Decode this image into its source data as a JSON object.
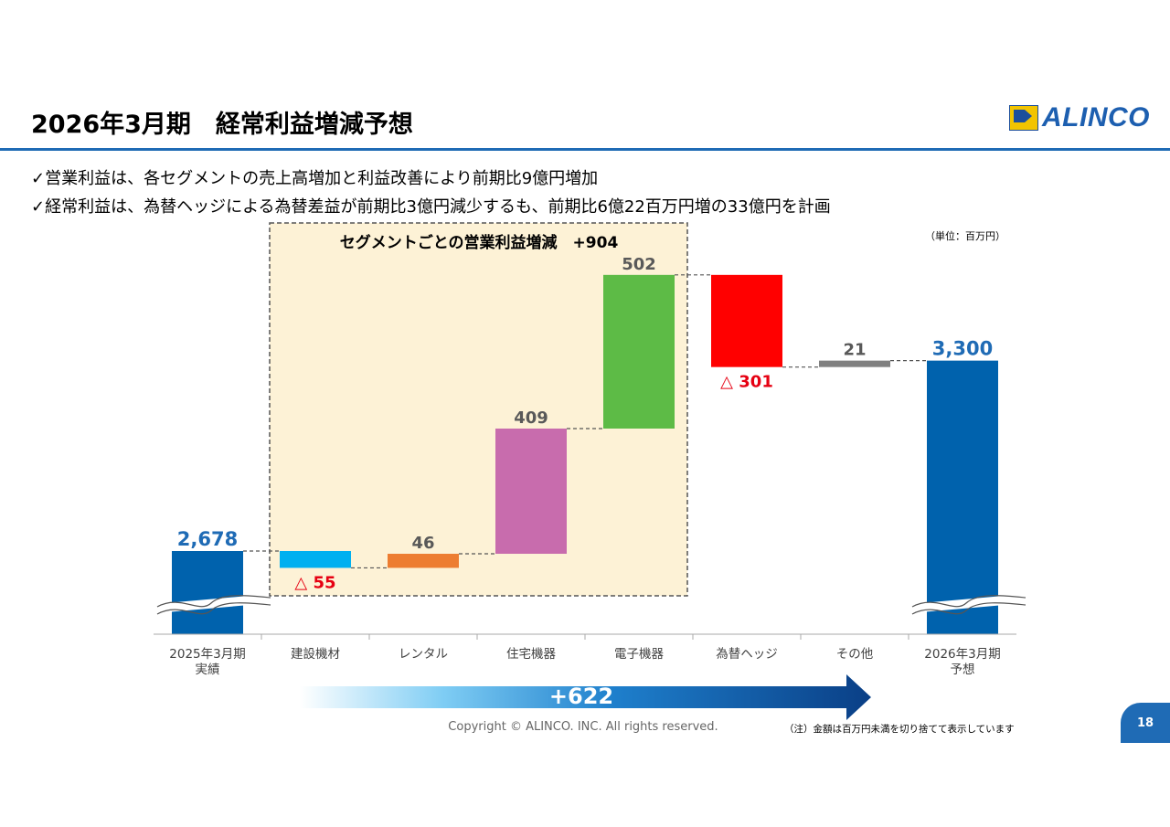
{
  "header": {
    "title": "2026年3月期　経常利益増減予想",
    "logo_text": "ALINCO"
  },
  "bullets": [
    "✓営業利益は、各セグメントの売上高増加と利益改善により前期比9億円増加",
    "✓経常利益は、為替ヘッジによる為替差益が前期比3億円減少するも、前期比6億22百万円増の33億円を計画"
  ],
  "unit_label": "（単位：百万円）",
  "segment_box_label": "セグメントごとの営業利益増減　+904",
  "total_change_label": "+622",
  "copyright": "Copyright © ALINCO. INC. All rights reserved.",
  "note": "（注）金額は百万円未満を切り捨てて表示しています",
  "page_number": "18",
  "colors": {
    "accent_blue": "#1f6bb5",
    "bar_blue": "#0062ad",
    "value_blue": "#1f6bb5",
    "negative_red": "#e60012",
    "label_gray": "#595959",
    "box_fill": "#fdf2d6"
  },
  "chart_data": {
    "type": "waterfall",
    "title": "",
    "xlabel": "",
    "ylabel": "",
    "axis_break": true,
    "categories": [
      "2025年3月期\n実績",
      "建設機材",
      "レンタル",
      "住宅機器",
      "電子機器",
      "為替ヘッジ",
      "その他",
      "2026年3月期\n予想"
    ],
    "steps": [
      {
        "category": "2025年3月期\n実績",
        "kind": "total",
        "value": 2678,
        "label": "2,678",
        "color": "#0062ad"
      },
      {
        "category": "建設機材",
        "kind": "delta",
        "value": -55,
        "label": "△ 55",
        "color": "#00b0f0"
      },
      {
        "category": "レンタル",
        "kind": "delta",
        "value": 46,
        "label": "46",
        "color": "#ed7d31"
      },
      {
        "category": "住宅機器",
        "kind": "delta",
        "value": 409,
        "label": "409",
        "color": "#c86cad"
      },
      {
        "category": "電子機器",
        "kind": "delta",
        "value": 502,
        "label": "502",
        "color": "#5dbb46"
      },
      {
        "category": "為替ヘッジ",
        "kind": "delta",
        "value": -301,
        "label": "△ 301",
        "color": "#ff0000"
      },
      {
        "category": "その他",
        "kind": "delta",
        "value": 21,
        "label": "21",
        "color": "#808080"
      },
      {
        "category": "2026年3月期\n予想",
        "kind": "total",
        "value": 3300,
        "label": "3,300",
        "color": "#0062ad"
      }
    ]
  }
}
